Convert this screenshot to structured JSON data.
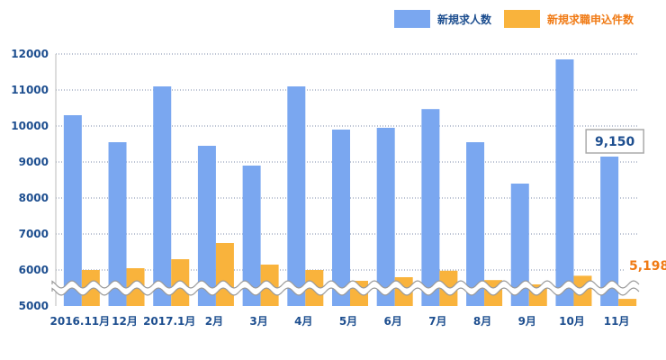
{
  "chart_data": {
    "type": "bar",
    "categories": [
      "2016.11月",
      "12月",
      "2017.1月",
      "2月",
      "3月",
      "4月",
      "5月",
      "6月",
      "7月",
      "8月",
      "9月",
      "10月",
      "11月"
    ],
    "series": [
      {
        "name": "新規求人数",
        "color": "#7aa7f0",
        "values": [
          10300,
          9550,
          11100,
          9450,
          8900,
          11100,
          9900,
          9950,
          10470,
          9550,
          8400,
          11850,
          9150
        ]
      },
      {
        "name": "新規求職申込件数",
        "color": "#f9b33c",
        "values": [
          6000,
          6050,
          6300,
          6750,
          6150,
          6000,
          5700,
          5800,
          5980,
          5720,
          5600,
          5840,
          5198
        ]
      }
    ],
    "yticks": [
      5000,
      6000,
      7000,
      8000,
      9000,
      10000,
      11000,
      12000
    ],
    "ylim": [
      5000,
      12000
    ],
    "grid": "dotted-horizontal",
    "legend_position": "top-right",
    "annotations": [
      {
        "text": "9,150",
        "series": 0,
        "index": 12,
        "color": "#1d4e8f",
        "border": "#aaaaaa"
      },
      {
        "text": "5,198",
        "series": 1,
        "index": 12,
        "color": "#f07a14",
        "border": ""
      }
    ]
  }
}
